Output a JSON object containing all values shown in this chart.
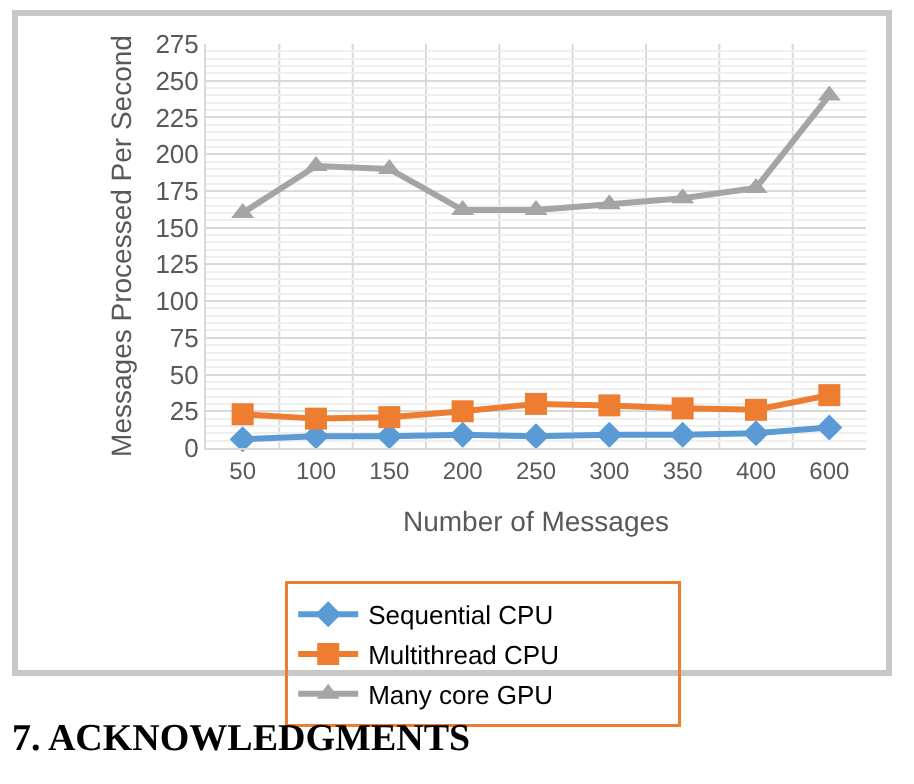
{
  "chart_data": {
    "type": "line",
    "xlabel": "Number of Messages",
    "ylabel": "Messages Processed Per Second",
    "categories": [
      "50",
      "100",
      "150",
      "200",
      "250",
      "300",
      "350",
      "400",
      "600"
    ],
    "series": [
      {
        "name": "Sequential CPU",
        "color": "#5b9bd5",
        "marker": "diamond",
        "values": [
          6,
          8,
          8,
          9,
          8,
          9,
          9,
          10,
          14
        ]
      },
      {
        "name": "Multithread CPU",
        "color": "#ed7d31",
        "marker": "square",
        "values": [
          23,
          20,
          21,
          25,
          30,
          29,
          27,
          26,
          36
        ]
      },
      {
        "name": "Many core GPU",
        "color": "#a5a5a5",
        "marker": "triangle",
        "values": [
          160,
          192,
          190,
          162,
          162,
          166,
          170,
          177,
          240
        ]
      }
    ],
    "ylim": [
      0,
      275
    ],
    "yticks": [
      0,
      25,
      50,
      75,
      100,
      125,
      150,
      175,
      200,
      225,
      250,
      275
    ],
    "grid": true,
    "legend": "bottom",
    "line_style": "solid",
    "annotations": [
      "7. ACKNOWLEDGMENTS"
    ]
  }
}
